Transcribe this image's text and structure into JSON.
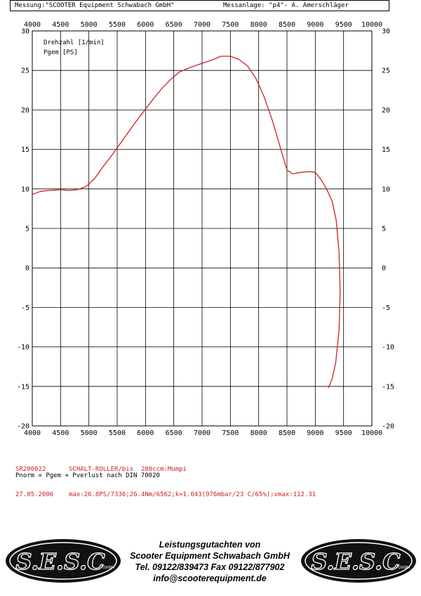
{
  "header": {
    "measurement": "Messung:\"SCOOTER Equipment Schwabach GmbH\"",
    "facility": "Messanlage: \"p4\"- A. Amerschläger"
  },
  "chart_data": {
    "type": "line",
    "title": "",
    "xlabel": "",
    "ylabel": "",
    "xlim": [
      4000,
      10000
    ],
    "ylim": [
      -20,
      30
    ],
    "x_ticks": [
      4000,
      4500,
      5000,
      5500,
      6000,
      6500,
      7000,
      7500,
      8000,
      8500,
      9000,
      9500,
      10000
    ],
    "y_ticks": [
      -20,
      -15,
      -10,
      -5,
      0,
      5,
      10,
      15,
      20,
      25,
      30
    ],
    "grid": true,
    "legend": {
      "position": "top-left",
      "entries": [
        "Drehzahl [1/min]",
        "Pgem [PS]"
      ]
    },
    "series": [
      {
        "name": "Pgem [PS]",
        "color": "#cc2222",
        "points": [
          [
            4000,
            9.3
          ],
          [
            4150,
            9.7
          ],
          [
            4300,
            9.8
          ],
          [
            4500,
            9.9
          ],
          [
            4650,
            9.8
          ],
          [
            4800,
            9.9
          ],
          [
            4950,
            10.3
          ],
          [
            5100,
            11.3
          ],
          [
            5250,
            12.8
          ],
          [
            5400,
            14.2
          ],
          [
            5550,
            15.7
          ],
          [
            5700,
            17.2
          ],
          [
            5850,
            18.7
          ],
          [
            6000,
            20.1
          ],
          [
            6150,
            21.5
          ],
          [
            6300,
            22.8
          ],
          [
            6450,
            23.9
          ],
          [
            6600,
            24.8
          ],
          [
            6800,
            25.4
          ],
          [
            7000,
            25.9
          ],
          [
            7200,
            26.4
          ],
          [
            7336,
            26.8
          ],
          [
            7500,
            26.8
          ],
          [
            7650,
            26.4
          ],
          [
            7800,
            25.6
          ],
          [
            7950,
            24.0
          ],
          [
            8100,
            21.6
          ],
          [
            8250,
            18.5
          ],
          [
            8400,
            14.8
          ],
          [
            8500,
            12.4
          ],
          [
            8600,
            11.9
          ],
          [
            8750,
            12.1
          ],
          [
            8900,
            12.2
          ],
          [
            9000,
            12.1
          ],
          [
            9100,
            11.2
          ],
          [
            9200,
            10.0
          ],
          [
            9300,
            8.4
          ],
          [
            9370,
            6.0
          ],
          [
            9420,
            2.0
          ],
          [
            9440,
            -3.0
          ],
          [
            9420,
            -8.0
          ],
          [
            9360,
            -12.0
          ],
          [
            9300,
            -14.0
          ],
          [
            9230,
            -15.2
          ]
        ]
      }
    ]
  },
  "info": {
    "line1_left": "SR200022",
    "line1_right": "SCHALT-ROLLER/bis  200ccm:Mumpi",
    "line2_left": "27.05.2006",
    "line2_right": "max:26.8PS/7336;26.4Nm/6562;k=1.043(976mbar/23 C/65%);vmax:112.31"
  },
  "norm_text": "Pnorm = Pgem + Pverlust nach DIN 70020",
  "logo": {
    "text": "S.E.S.C",
    "suffix": "GmbH"
  },
  "footer": {
    "line1": "Leistungsgutachten von",
    "line2": "Scooter Equipment Schwabach GmbH",
    "line3": "Tel. 09122/839473 Fax 09122/877902",
    "line4": "info@scooterequipment.de"
  }
}
